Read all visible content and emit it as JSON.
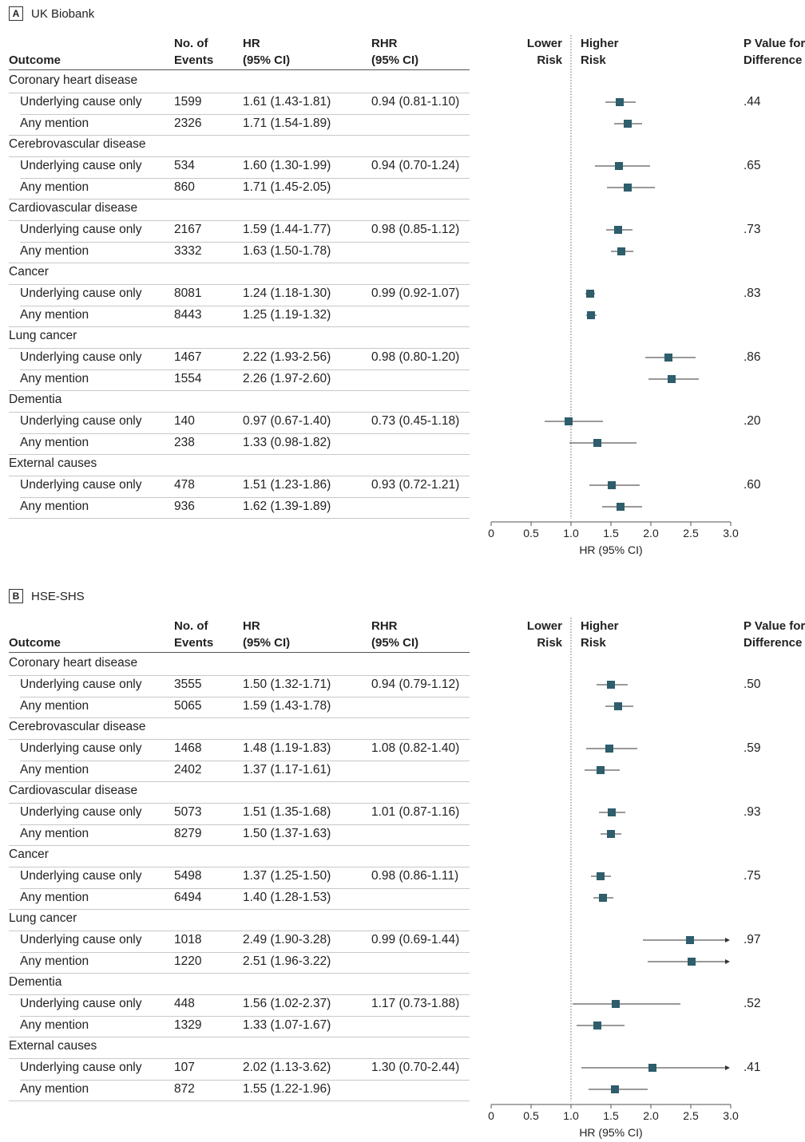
{
  "chart_data": [
    {
      "type": "forest",
      "panel_letter": "A",
      "panel_title": "UK Biobank",
      "columns": {
        "outcome": "Outcome",
        "events_line1": "No. of",
        "events_line2": "Events",
        "hr_line1": "HR",
        "hr_line2": "(95% CI)",
        "rhr_line1": "RHR",
        "rhr_line2": "(95% CI)",
        "pval_line1": "P Value for",
        "pval_line2": "Difference",
        "lower_line1": "Lower",
        "lower_line2": "Risk",
        "higher_line1": "Higher",
        "higher_line2": "Risk"
      },
      "xlabel": "HR (95% CI)",
      "xlim": [
        0,
        3.0
      ],
      "xticks": [
        "0",
        "0.5",
        "1.0",
        "1.5",
        "2.0",
        "2.5",
        "3.0"
      ],
      "reference_line": 1.0,
      "groups": [
        {
          "category": "Coronary heart disease",
          "rhr": "0.94 (0.81-1.10)",
          "p": ".44",
          "rows": [
            {
              "label": "Underlying cause only",
              "events": "1599",
              "hr_text": "1.61 (1.43-1.81)",
              "hr": 1.61,
              "lo": 1.43,
              "hi": 1.81
            },
            {
              "label": "Any mention",
              "events": "2326",
              "hr_text": "1.71 (1.54-1.89)",
              "hr": 1.71,
              "lo": 1.54,
              "hi": 1.89
            }
          ]
        },
        {
          "category": "Cerebrovascular disease",
          "rhr": "0.94 (0.70-1.24)",
          "p": ".65",
          "rows": [
            {
              "label": "Underlying cause only",
              "events": "534",
              "hr_text": "1.60 (1.30-1.99)",
              "hr": 1.6,
              "lo": 1.3,
              "hi": 1.99
            },
            {
              "label": "Any mention",
              "events": "860",
              "hr_text": "1.71 (1.45-2.05)",
              "hr": 1.71,
              "lo": 1.45,
              "hi": 2.05
            }
          ]
        },
        {
          "category": "Cardiovascular disease",
          "rhr": "0.98 (0.85-1.12)",
          "p": ".73",
          "rows": [
            {
              "label": "Underlying cause only",
              "events": "2167",
              "hr_text": "1.59 (1.44-1.77)",
              "hr": 1.59,
              "lo": 1.44,
              "hi": 1.77
            },
            {
              "label": "Any mention",
              "events": "3332",
              "hr_text": "1.63 (1.50-1.78)",
              "hr": 1.63,
              "lo": 1.5,
              "hi": 1.78
            }
          ]
        },
        {
          "category": "Cancer",
          "rhr": "0.99 (0.92-1.07)",
          "p": ".83",
          "rows": [
            {
              "label": "Underlying cause only",
              "events": "8081",
              "hr_text": "1.24 (1.18-1.30)",
              "hr": 1.24,
              "lo": 1.18,
              "hi": 1.3
            },
            {
              "label": "Any mention",
              "events": "8443",
              "hr_text": "1.25 (1.19-1.32)",
              "hr": 1.25,
              "lo": 1.19,
              "hi": 1.32
            }
          ]
        },
        {
          "category": "Lung cancer",
          "rhr": "0.98 (0.80-1.20)",
          "p": ".86",
          "rows": [
            {
              "label": "Underlying cause only",
              "events": "1467",
              "hr_text": "2.22 (1.93-2.56)",
              "hr": 2.22,
              "lo": 1.93,
              "hi": 2.56
            },
            {
              "label": "Any mention",
              "events": "1554",
              "hr_text": "2.26 (1.97-2.60)",
              "hr": 2.26,
              "lo": 1.97,
              "hi": 2.6
            }
          ]
        },
        {
          "category": "Dementia",
          "rhr": "0.73 (0.45-1.18)",
          "p": ".20",
          "rows": [
            {
              "label": "Underlying cause only",
              "events": "140",
              "hr_text": "0.97 (0.67-1.40)",
              "hr": 0.97,
              "lo": 0.67,
              "hi": 1.4
            },
            {
              "label": "Any mention",
              "events": "238",
              "hr_text": "1.33 (0.98-1.82)",
              "hr": 1.33,
              "lo": 0.98,
              "hi": 1.82
            }
          ]
        },
        {
          "category": "External causes",
          "rhr": "0.93 (0.72-1.21)",
          "p": ".60",
          "rows": [
            {
              "label": "Underlying cause only",
              "events": "478",
              "hr_text": "1.51 (1.23-1.86)",
              "hr": 1.51,
              "lo": 1.23,
              "hi": 1.86
            },
            {
              "label": "Any mention",
              "events": "936",
              "hr_text": "1.62 (1.39-1.89)",
              "hr": 1.62,
              "lo": 1.39,
              "hi": 1.89
            }
          ]
        }
      ]
    },
    {
      "type": "forest",
      "panel_letter": "B",
      "panel_title": "HSE-SHS",
      "columns": {
        "outcome": "Outcome",
        "events_line1": "No. of",
        "events_line2": "Events",
        "hr_line1": "HR",
        "hr_line2": "(95% CI)",
        "rhr_line1": "RHR",
        "rhr_line2": "(95% CI)",
        "pval_line1": "P Value for",
        "pval_line2": "Difference",
        "lower_line1": "Lower",
        "lower_line2": "Risk",
        "higher_line1": "Higher",
        "higher_line2": "Risk"
      },
      "xlabel": "HR (95% CI)",
      "xlim": [
        0,
        3.0
      ],
      "xticks": [
        "0",
        "0.5",
        "1.0",
        "1.5",
        "2.0",
        "2.5",
        "3.0"
      ],
      "reference_line": 1.0,
      "groups": [
        {
          "category": "Coronary heart disease",
          "rhr": "0.94 (0.79-1.12)",
          "p": ".50",
          "rows": [
            {
              "label": "Underlying cause only",
              "events": "3555",
              "hr_text": "1.50 (1.32-1.71)",
              "hr": 1.5,
              "lo": 1.32,
              "hi": 1.71
            },
            {
              "label": "Any mention",
              "events": "5065",
              "hr_text": "1.59 (1.43-1.78)",
              "hr": 1.59,
              "lo": 1.43,
              "hi": 1.78
            }
          ]
        },
        {
          "category": "Cerebrovascular disease",
          "rhr": "1.08 (0.82-1.40)",
          "p": ".59",
          "rows": [
            {
              "label": "Underlying cause only",
              "events": "1468",
              "hr_text": "1.48 (1.19-1.83)",
              "hr": 1.48,
              "lo": 1.19,
              "hi": 1.83
            },
            {
              "label": "Any mention",
              "events": "2402",
              "hr_text": "1.37 (1.17-1.61)",
              "hr": 1.37,
              "lo": 1.17,
              "hi": 1.61
            }
          ]
        },
        {
          "category": "Cardiovascular disease",
          "rhr": "1.01 (0.87-1.16)",
          "p": ".93",
          "rows": [
            {
              "label": "Underlying cause only",
              "events": "5073",
              "hr_text": "1.51 (1.35-1.68)",
              "hr": 1.51,
              "lo": 1.35,
              "hi": 1.68
            },
            {
              "label": "Any mention",
              "events": "8279",
              "hr_text": "1.50 (1.37-1.63)",
              "hr": 1.5,
              "lo": 1.37,
              "hi": 1.63
            }
          ]
        },
        {
          "category": "Cancer",
          "rhr": "0.98 (0.86-1.11)",
          "p": ".75",
          "rows": [
            {
              "label": "Underlying cause only",
              "events": "5498",
              "hr_text": "1.37 (1.25-1.50)",
              "hr": 1.37,
              "lo": 1.25,
              "hi": 1.5
            },
            {
              "label": "Any mention",
              "events": "6494",
              "hr_text": "1.40 (1.28-1.53)",
              "hr": 1.4,
              "lo": 1.28,
              "hi": 1.53
            }
          ]
        },
        {
          "category": "Lung cancer",
          "rhr": "0.99 (0.69-1.44)",
          "p": ".97",
          "rows": [
            {
              "label": "Underlying cause only",
              "events": "1018",
              "hr_text": "2.49 (1.90-3.28)",
              "hr": 2.49,
              "lo": 1.9,
              "hi": 3.28
            },
            {
              "label": "Any mention",
              "events": "1220",
              "hr_text": "2.51 (1.96-3.22)",
              "hr": 2.51,
              "lo": 1.96,
              "hi": 3.22
            }
          ]
        },
        {
          "category": "Dementia",
          "rhr": "1.17 (0.73-1.88)",
          "p": ".52",
          "rows": [
            {
              "label": "Underlying cause only",
              "events": "448",
              "hr_text": "1.56 (1.02-2.37)",
              "hr": 1.56,
              "lo": 1.02,
              "hi": 2.37
            },
            {
              "label": "Any mention",
              "events": "1329",
              "hr_text": "1.33 (1.07-1.67)",
              "hr": 1.33,
              "lo": 1.07,
              "hi": 1.67
            }
          ]
        },
        {
          "category": "External causes",
          "rhr": "1.30 (0.70-2.44)",
          "p": ".41",
          "rows": [
            {
              "label": "Underlying cause only",
              "events": "107",
              "hr_text": "2.02 (1.13-3.62)",
              "hr": 2.02,
              "lo": 1.13,
              "hi": 3.62
            },
            {
              "label": "Any mention",
              "events": "872",
              "hr_text": "1.55 (1.22-1.96)",
              "hr": 1.55,
              "lo": 1.22,
              "hi": 1.96
            }
          ]
        }
      ]
    }
  ],
  "colors": {
    "marker": "#2e5d6b",
    "ci_line": "#333333",
    "axis": "#555555",
    "reference_line": "#666666"
  }
}
